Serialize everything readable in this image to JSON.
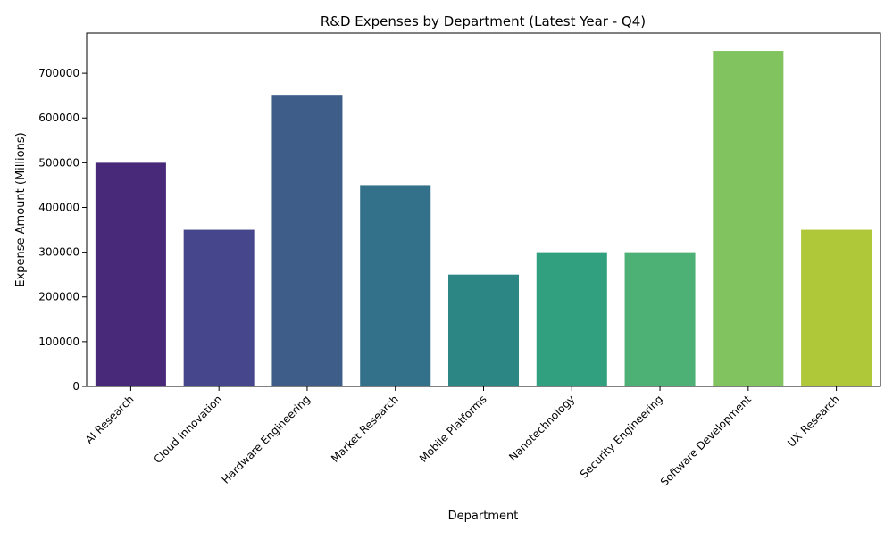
{
  "chart_data": {
    "type": "bar",
    "title": "R&D Expenses by Department (Latest Year - Q4)",
    "xlabel": "Department",
    "ylabel": "Expense Amount (Millions)",
    "categories": [
      "AI Research",
      "Cloud Innovation",
      "Hardware Engineering",
      "Market Research",
      "Mobile Platforms",
      "Nanotechnology",
      "Security Engineering",
      "Software Development",
      "UX Research"
    ],
    "values": [
      500000,
      350000,
      650000,
      450000,
      250000,
      300000,
      300000,
      750000,
      350000
    ],
    "colors": [
      "#482878",
      "#46468c",
      "#3e5e89",
      "#33718a",
      "#2b8684",
      "#31a07e",
      "#4db176",
      "#80c35f",
      "#afc83a"
    ],
    "ylim": [
      0,
      790000
    ],
    "yticks": [
      0,
      100000,
      200000,
      300000,
      400000,
      500000,
      600000,
      700000
    ],
    "grid": false,
    "legend": "none"
  }
}
